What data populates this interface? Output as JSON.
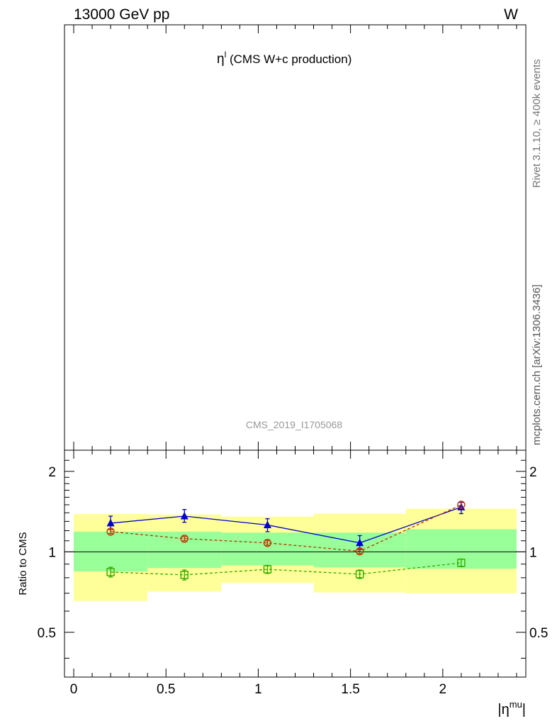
{
  "header": {
    "left": "13000 GeV pp",
    "right": "W"
  },
  "main_panel": {
    "title_symbol": "η",
    "title_sup": "l",
    "title_rest": " (CMS W+c production)",
    "watermark": "CMS_2019_I1705068"
  },
  "side_labels": {
    "rivet": "Rivet 3.1.10, ≥ 400k events",
    "mcplots": "mcplots.cern.ch [arXiv:1306.3436]"
  },
  "chart_data": {
    "type": "line",
    "panel": "ratio",
    "ylabel": "Ratio to CMS",
    "xlabel_base": "|η",
    "xlabel_sup": "mu",
    "xlabel_end": "|",
    "xlim": [
      -0.05,
      2.45
    ],
    "ylim": [
      0.34,
      2.4
    ],
    "yscale": "log",
    "x_ticks": [
      {
        "v": 0,
        "label": "0"
      },
      {
        "v": 0.5,
        "label": "0.5"
      },
      {
        "v": 1,
        "label": "1"
      },
      {
        "v": 1.5,
        "label": "1.5"
      },
      {
        "v": 2,
        "label": "2"
      }
    ],
    "y_ticks": [
      {
        "v": 0.5,
        "label": "0.5"
      },
      {
        "v": 1,
        "label": "1"
      },
      {
        "v": 2,
        "label": "2"
      }
    ],
    "reference_line": 1.0,
    "bands": [
      {
        "x0": 0.0,
        "x1": 0.4,
        "inner": [
          0.845,
          1.19
        ],
        "outer": [
          0.655,
          1.385
        ]
      },
      {
        "x0": 0.4,
        "x1": 0.8,
        "inner": [
          0.87,
          1.19
        ],
        "outer": [
          0.71,
          1.38
        ]
      },
      {
        "x0": 0.8,
        "x1": 1.3,
        "inner": [
          0.89,
          1.18
        ],
        "outer": [
          0.765,
          1.355
        ]
      },
      {
        "x0": 1.3,
        "x1": 1.8,
        "inner": [
          0.875,
          1.18
        ],
        "outer": [
          0.705,
          1.39
        ]
      },
      {
        "x0": 1.8,
        "x1": 2.4,
        "inner": [
          0.865,
          1.215
        ],
        "outer": [
          0.7,
          1.45
        ]
      }
    ],
    "series": [
      {
        "marker": "triangle",
        "color": "#0000cc",
        "dashed": false,
        "x": [
          0.2,
          0.6,
          1.05,
          1.55,
          2.1
        ],
        "y": [
          1.28,
          1.36,
          1.26,
          1.08,
          1.47
        ],
        "err_lo": [
          0.07,
          0.07,
          0.07,
          0.06,
          0.08
        ],
        "err_hi": [
          0.08,
          0.08,
          0.07,
          0.07,
          0.06
        ]
      },
      {
        "marker": "circle",
        "color": "#bb3300",
        "dashed": true,
        "x": [
          0.2,
          0.6,
          1.05,
          1.55,
          2.1
        ],
        "y": [
          1.19,
          1.12,
          1.08,
          1.005,
          1.5
        ],
        "err_lo": [
          0.02,
          0.02,
          0.02,
          0.02,
          0.04
        ],
        "err_hi": [
          0.02,
          0.02,
          0.02,
          0.02,
          0.04
        ]
      },
      {
        "marker": "square",
        "color": "#33aa00",
        "dashed": true,
        "x": [
          0.2,
          0.6,
          1.05,
          1.55,
          2.1
        ],
        "y": [
          0.84,
          0.82,
          0.86,
          0.825,
          0.91
        ],
        "err_lo": [
          0.035,
          0.035,
          0.03,
          0.03,
          0.03
        ],
        "err_hi": [
          0.035,
          0.035,
          0.03,
          0.03,
          0.03
        ]
      }
    ],
    "colors": {
      "band_outer": "#ffff99",
      "band_inner": "#99ff99"
    }
  }
}
